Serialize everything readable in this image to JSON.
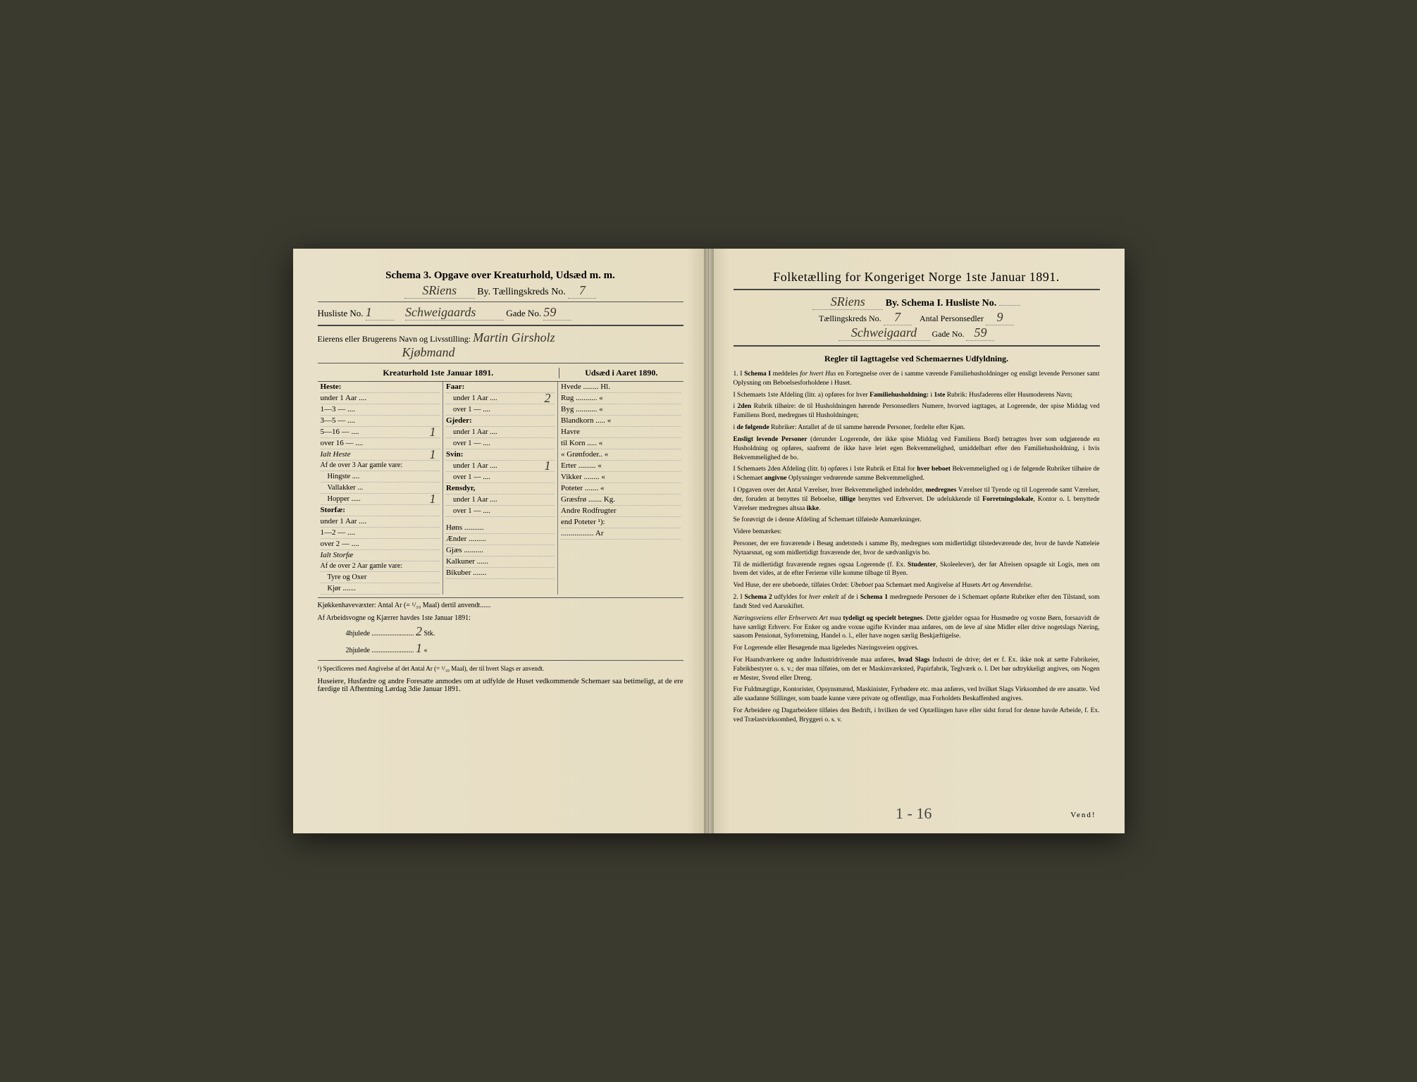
{
  "colors": {
    "paper": "#e8e0c8",
    "ink": "#2b2b2b",
    "handwriting": "#3a3528",
    "rule": "#444444",
    "dotted": "#888888",
    "background": "#3a3a2f"
  },
  "left": {
    "schema_title": "Schema 3.  Opgave over Kreaturhold, Udsæd m. m.",
    "by_label": "By.  Tællingskreds No.",
    "by_hand": "SRiens",
    "kreds_no": "7",
    "husliste_label": "Husliste No.",
    "husliste_no": "1",
    "gade_label": "Gade No.",
    "gade_hand": "Schweigaards",
    "gade_no": "59",
    "owner_label": "Eierens eller Brugerens Navn og Livsstilling:",
    "owner_hand": "Martin Girsholz",
    "owner_sub": "Kjøbmand",
    "left_col_title": "Kreaturhold 1ste Januar 1891.",
    "right_col_title": "Udsæd i Aaret 1890.",
    "heste": {
      "title": "Heste:",
      "rows": [
        {
          "label": "under 1 Aar ....",
          "val": ""
        },
        {
          "label": "1—3   —  ....",
          "val": ""
        },
        {
          "label": "3—5   —  ....",
          "val": ""
        },
        {
          "label": "5—16  —  ....",
          "val": "1"
        },
        {
          "label": "over 16 —  ....",
          "val": ""
        }
      ],
      "ialt": "Ialt Heste",
      "ialt_val": "1",
      "over3": "Af de over 3 Aar gamle vare:",
      "sub": [
        {
          "label": "Hingste ....",
          "val": ""
        },
        {
          "label": "Vallakker ...",
          "val": ""
        },
        {
          "label": "Hopper .....",
          "val": "1"
        }
      ]
    },
    "storfe": {
      "title": "Storfæ:",
      "rows": [
        {
          "label": "under 1 Aar ....",
          "val": ""
        },
        {
          "label": "1—2   —  ....",
          "val": ""
        },
        {
          "label": "over 2  —  ....",
          "val": ""
        }
      ],
      "ialt": "Ialt Storfæ",
      "over2": "Af de over 2 Aar gamle vare:",
      "sub": [
        {
          "label": "Tyre og Oxer",
          "val": ""
        },
        {
          "label": "Kjør .......",
          "val": ""
        }
      ]
    },
    "col2": [
      {
        "title": "Faar:",
        "rows": [
          {
            "label": "under 1 Aar ....",
            "val": "2"
          },
          {
            "label": "over 1   —  ....",
            "val": ""
          }
        ]
      },
      {
        "title": "Gjeder:",
        "rows": [
          {
            "label": "under 1 Aar ....",
            "val": ""
          },
          {
            "label": "over 1   —  ....",
            "val": ""
          }
        ]
      },
      {
        "title": "Svin:",
        "rows": [
          {
            "label": "under 1 Aar ....",
            "val": "1"
          },
          {
            "label": "over 1   —  ....",
            "val": ""
          }
        ]
      },
      {
        "title": "Rensdyr,",
        "rows": [
          {
            "label": "under 1 Aar ....",
            "val": ""
          },
          {
            "label": "over 1   —  ....",
            "val": ""
          }
        ]
      }
    ],
    "col2b": [
      {
        "label": "Høns ..........",
        "val": ""
      },
      {
        "label": "Ænder .........",
        "val": ""
      },
      {
        "label": "Gjæs ..........",
        "val": ""
      },
      {
        "label": "Kalkuner ......",
        "val": ""
      },
      {
        "label": "Bikuber .......",
        "val": ""
      }
    ],
    "udsed": [
      {
        "label": "Hvede ........ Hl.",
        "val": ""
      },
      {
        "label": "Rug ........... «",
        "val": ""
      },
      {
        "label": "Byg ........... «",
        "val": ""
      },
      {
        "label": "Blandkorn ..... «",
        "val": ""
      },
      {
        "label": "Havre",
        "val": ""
      },
      {
        "label": "  til Korn ..... «",
        "val": ""
      },
      {
        "label": "  «  Grønfoder.. «",
        "val": ""
      },
      {
        "label": "Erter ......... «",
        "val": ""
      },
      {
        "label": "Vikker ........ «",
        "val": ""
      },
      {
        "label": "Poteter ....... «",
        "val": ""
      },
      {
        "label": "Græsfrø ....... Kg.",
        "val": ""
      },
      {
        "label": "Andre Rodfrugter",
        "val": ""
      },
      {
        "label": "  end Poteter ¹):",
        "val": ""
      },
      {
        "label": "................. Ar",
        "val": ""
      }
    ],
    "kjokken": "Kjøkkenhavevæxter:  Antal Ar (= ¹/₁₀ Maal) dertil anvendt......",
    "arbeids": "Af Arbeidsvogne og Kjærrer havdes 1ste Januar 1891:",
    "hjul4": "4hjulede ........................",
    "hjul4_val": "2",
    "hjul4_unit": "Stk.",
    "hjul2": "2hjulede ........................",
    "hjul2_val": "1",
    "hjul2_unit": "«",
    "footnote": "¹) Specificeres med Angivelse af det Antal Ar (= ¹/₁₀ Maal), der til hvert Slags er anvendt.",
    "bottom": "Huseiere, Husfædre og andre Foresatte anmodes om at udfylde de Huset vedkommende Schemaer saa betimeligt, at de ere færdige til Afhentning Lørdag 3die Januar 1891."
  },
  "right": {
    "title": "Folketælling for Kongeriget Norge 1ste Januar 1891.",
    "line2_hand": "SRiens",
    "line2": "By.   Schema I.   Husliste No.",
    "kreds_label": "Tællingskreds No.",
    "kreds_no": "7",
    "person_label": "Antal Personsedler",
    "person_no": "9",
    "gade_hand": "Schweigaard",
    "gade_label": "Gade No.",
    "gade_no": "59",
    "rules_title": "Regler til Iagttagelse ved Schemaernes Udfyldning.",
    "rules": [
      "1. I <b>Schema I</b> meddeles <i>for hvert Hus</i> en Fortegnelse over de i samme værende Familiehusholdninger og ensligt levende Personer samt Oplysning om Beboelsesforholdene i Huset.",
      "I Schemaets 1ste Afdeling (litr. a) opføres for hver <b>Familiehusholdning:</b> i <b>1ste</b> Rubrik: Husfaderens eller Husmoderens Navn;",
      "i <b>2den</b> Rubrik tilhøire: de til Husholdningen hørende Personsedlers Numere, hvorved iagttages, at Logerende, der spise Middag ved Familiens Bord, medregnes til Husholdningen;",
      "i <b>de følgende</b> Rubriker: Antallet af de til samme hørende Personer, fordelte efter Kjøn.",
      "<b>Ensligt levende Personer</b> (derunder Logerende, der ikke spise Middag ved Familiens Bord) betragtes hver som udgjørende en Husholdning og opføres, saafremt de ikke have leiet egen Bekvemmelighed, umiddelbart efter den Familiehusholdning, i hvis Bekvemmelighed de bo.",
      "I Schemaets 2den Afdeling (litr. b) opføres i 1ste Rubrik et Ettal for <b>hver beboet</b> Bekvemmelighed og i de følgende Rubriker tilhøire de i Schemaet <b>angivne</b> Oplysninger vedrørende samme Bekvemmelighed.",
      "I Opgaven over det Antal Værelser, hver Bekvemmelighed indeholder, <b>medregnes</b> Værelser til Tyende og til Logerende samt Værelser, der, foruden at benyttes til Beboelse, <b>tillige</b> benyttes ved Erhvervet. De udelukkende til <b>Forretningslokale</b>, Kontor o. l. benyttede Værelser medregnes altsaa <b>ikke</b>.",
      "Se forøvrigt de i denne Afdeling af Schemaet tilføiede Anmærkninger.",
      "Videre bemærkes:",
      "Personer, der ere fraværende i Besøg andetsteds i samme By, medregnes som midlertidigt tilstedeværende der, hvor de havde Natteleie Nytaarsnat, og som midlertidigt fraværende der, hvor de sædvanligvis bo.",
      "Til de midlertidigt fraværende regnes ogsaa Logerende (f. Ex. <b>Studenter</b>, Skoleelever), der før Afreisen opsagde sit Logis, men om hvem det vides, at de efter Ferierne ville komme tilbage til Byen.",
      "Ved Huse, der ere ubeboede, tilføies Ordet: <i>Ubeboet</i> paa Schemaet med Angivelse af Husets <i>Art og Anvendelse</i>.",
      "2. I <b>Schema 2</b> udfyldes for <i>hver enkelt</i> af de i <b>Schema 1</b> medregnede Personer de i Schemaet opførte Rubriker efter den Tilstand, som fandt Sted ved Aarsskiftet.",
      "<i>Næringsveiens eller Erhvervets Art maa</i> <b>tydeligt og specielt betegnes</b>. Dette gjælder ogsaa for Husmødre og voxne Børn, forsaavidt de have særligt Erhverv. For Enker og andre voxne ugifte Kvinder maa anføres, om de leve af sine Midler eller drive nogetslags Næring, saasom Pensionat, Syforretning, Handel o. l., eller have nogen særlig Beskjæftigelse.",
      "For Logerende eller Besøgende maa ligeledes Næringsveien opgives.",
      "For Haandværkere og andre Industridrivende maa anføres, <b>hvad Slags</b> Industri de drive; det er f. Ex. ikke nok at sætte Fabrikeier, Fabrikbestyrer o. s. v.; der maa tilføies, om det er Maskinværksted, Papirfabrik, Teglværk o. l.  Det bør udtrykkeligt angives, om Nogen er Mester, Svend eller Dreng.",
      "For Fuldmægtige, Kontorister, Opsynsmænd, Maskinister, Fyrbødere etc. maa anføres, ved hvilket Slags Virksomhed de ere ansatte. Ved alle saadanne Stillinger, som baade kunne være private og offentlige, maa Forholdets Beskaffenhed angives.",
      "For Arbeidere og Dagarbeidere tilføies den Bedrift, i hvilken de ved Optællingen have eller sidst forud for denne havde Arbeide, f. Ex. ved Trælastvirksomhed, Bryggeri o. s. v."
    ],
    "page_hand": "1 - 16",
    "vend": "Vend!"
  }
}
